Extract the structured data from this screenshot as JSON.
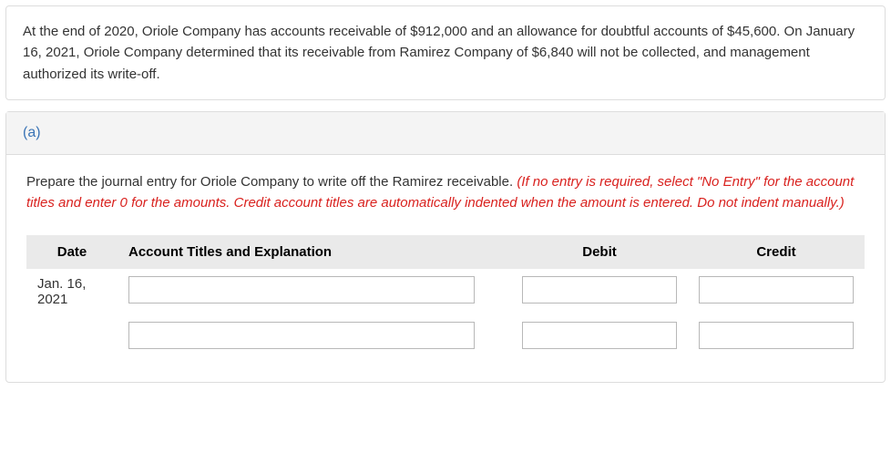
{
  "problem_text": "At the end of 2020, Oriole Company has accounts receivable of $912,000 and an allowance for doubtful accounts of $45,600. On January 16, 2021, Oriole Company determined that its receivable from Ramirez Company of $6,840 will not be collected, and management authorized its write-off.",
  "part_label": "(a)",
  "instruction_plain": "Prepare the journal entry for Oriole Company to write off the Ramirez receivable. ",
  "instruction_emph": "(If no entry is required, select \"No Entry\" for the account titles and enter 0 for the amounts. Credit account titles are automatically indented when the amount is entered. Do not indent manually.)",
  "table": {
    "columns": {
      "date": "Date",
      "account": "Account Titles and Explanation",
      "debit": "Debit",
      "credit": "Credit"
    },
    "rows": [
      {
        "date": "Jan. 16, 2021",
        "account": "",
        "debit": "",
        "credit": ""
      },
      {
        "date": "",
        "account": "",
        "debit": "",
        "credit": ""
      }
    ]
  },
  "colors": {
    "border": "#dddddd",
    "part_header_bg": "#f4f4f4",
    "part_label": "#3a74b6",
    "emph_text": "#d9221f",
    "table_header_bg": "#eaeaea",
    "input_border": "#b8b8b8",
    "body_text": "#333333"
  }
}
